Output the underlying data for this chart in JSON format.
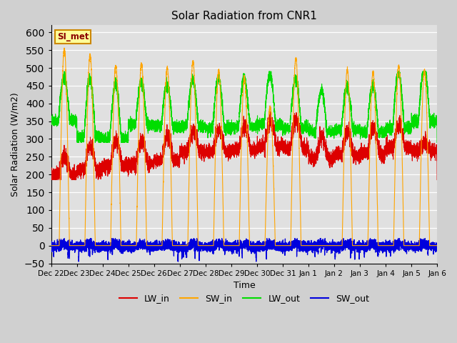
{
  "title": "Solar Radiation from CNR1",
  "xlabel": "Time",
  "ylabel": "Solar Radiation (W/m2)",
  "ylim": [
    -50,
    620
  ],
  "fig_facecolor": "#d0d0d0",
  "ax_facecolor": "#e0e0e0",
  "grid_color": "white",
  "colors": {
    "LW_in": "#dd0000",
    "SW_in": "#ffa500",
    "LW_out": "#00dd00",
    "SW_out": "#0000dd"
  },
  "annotation_text": "SI_met",
  "annotation_bg": "#ffff99",
  "annotation_border": "#cc8800",
  "n_days": 15,
  "ppd": 480,
  "tick_labels": [
    "Dec 22",
    "Dec 23",
    "Dec 24",
    "Dec 25",
    "Dec 26",
    "Dec 27",
    "Dec 28",
    "Dec 29",
    "Dec 30",
    "Dec 31",
    "Jan 1",
    "Jan 2",
    "Jan 3",
    "Jan 4",
    "Jan 5",
    "Jan 6"
  ]
}
